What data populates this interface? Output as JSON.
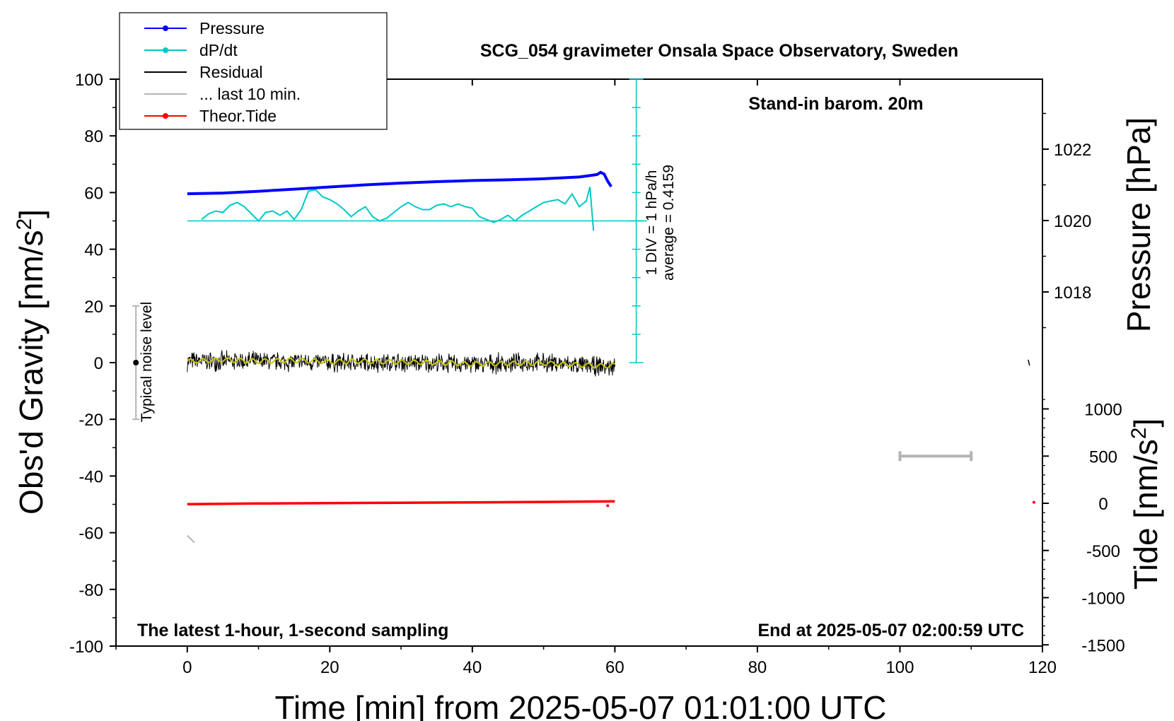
{
  "chart_data": {
    "type": "line",
    "title": "SCG_054 gravimeter Onsala Space Observatory, Sweden",
    "subtitle_left": "The latest 1-hour, 1-second sampling",
    "subtitle_right": "End at 2025-05-07 02:00:59 UTC",
    "barometer_note": "Stand-in barom. 20m",
    "noise_label": "Typical noise level",
    "dpdt_scale_label": "1 DIV = 1 hPa/h",
    "dpdt_average_label": "average = 0.4159",
    "xlabel": "Time [min] from 2025-05-07 01:01:00 UTC",
    "ylabel_left": "Obs'd Gravity [nm/s",
    "ylabel_left_sup": "2",
    "ylabel_left_end": "]",
    "ylabel_right_pressure": "Pressure [hPa]",
    "ylabel_right_tide": "Tide [nm/s",
    "ylabel_right_tide_sup": "2",
    "ylabel_right_tide_end": "]",
    "xlim": [
      -10,
      120
    ],
    "ylim_left": [
      -100,
      100
    ],
    "ylim_pressure": [
      1016.9,
      1024.8
    ],
    "ylim_tide": [
      -1500,
      1500
    ],
    "x_ticks": [
      "0",
      "20",
      "40",
      "60",
      "80",
      "100",
      "120"
    ],
    "y_ticks_left": [
      "100",
      "80",
      "60",
      "40",
      "20",
      "0",
      "-20",
      "-40",
      "-60",
      "-80",
      "-100"
    ],
    "y_ticks_pressure": [
      "1022",
      "1020",
      "1018"
    ],
    "y_ticks_tide": [
      "1000",
      "500",
      "0",
      "-500",
      "-1000",
      "-1500"
    ],
    "legend": [
      {
        "label": "Pressure",
        "color": "#0000ff",
        "marker": true
      },
      {
        "label": "dP/dt",
        "color": "#00c8c8",
        "marker": true
      },
      {
        "label": "Residual",
        "color": "#000000",
        "marker": false
      },
      {
        "label": "... last 10 min.",
        "color": "#b4b4b4",
        "marker": false
      },
      {
        "label": "Theor.Tide",
        "color": "#ff0000",
        "marker": true
      }
    ],
    "series": [
      {
        "name": "Pressure",
        "axis": "pressure_hpa",
        "color": "#0000ff",
        "x": [
          0,
          5,
          10,
          15,
          20,
          25,
          30,
          35,
          40,
          45,
          50,
          55,
          56.5,
          57.5,
          58,
          58.5,
          59,
          59.5
        ],
        "values": [
          1020.75,
          1020.77,
          1020.82,
          1020.88,
          1020.94,
          1021.0,
          1021.05,
          1021.09,
          1021.12,
          1021.14,
          1021.17,
          1021.22,
          1021.26,
          1021.29,
          1021.35,
          1021.3,
          1021.1,
          1020.95
        ]
      },
      {
        "name": "dP/dt",
        "axis": "gravity_scale",
        "color": "#00c8c8",
        "x": [
          2,
          3,
          4,
          5,
          6,
          7,
          8,
          9,
          10,
          11,
          12,
          13,
          14,
          15,
          16,
          17,
          18,
          19,
          20,
          21,
          22,
          23,
          24,
          25,
          26,
          27,
          28,
          29,
          30,
          31,
          32,
          33,
          34,
          35,
          36,
          37,
          38,
          39,
          40,
          41,
          42,
          43,
          44,
          45,
          46,
          47,
          48,
          49,
          50,
          51,
          52,
          53,
          54,
          55,
          56,
          56.5,
          57
        ],
        "values": [
          50.5,
          52.5,
          53.5,
          53,
          55.5,
          56.5,
          55,
          52.5,
          50,
          53,
          53.5,
          52,
          53.5,
          50.5,
          54,
          60.5,
          61,
          58.5,
          57.5,
          56,
          54,
          51.5,
          53.5,
          55,
          51.5,
          50,
          51,
          53,
          55,
          56.5,
          55,
          54,
          54,
          55.5,
          56,
          55,
          56,
          55,
          54.5,
          51.5,
          50.5,
          49.5,
          50.5,
          52,
          50,
          52,
          53.5,
          55,
          56.5,
          57,
          57.5,
          56,
          59.5,
          55,
          57,
          62,
          46.5
        ]
      },
      {
        "name": "Residual",
        "axis": "gravity",
        "color": "#000000",
        "x": [
          0,
          10,
          20,
          30,
          40,
          50,
          55,
          60
        ],
        "values": [
          0.5,
          0.5,
          0,
          0,
          -0.5,
          0,
          -1,
          -1.5
        ],
        "noise_amplitude": 4
      },
      {
        "name": "Smoothed residual",
        "axis": "gravity",
        "color": "#c8c800",
        "x": [
          0,
          5,
          10,
          15,
          20,
          25,
          30,
          35,
          40,
          45,
          50,
          55,
          58,
          60
        ],
        "values": [
          0.5,
          1,
          0.5,
          0.8,
          0.3,
          0.5,
          0.2,
          0,
          -0.5,
          -0.3,
          -0.2,
          -0.8,
          -1.2,
          -1
        ]
      },
      {
        "name": "Theor.Tide",
        "axis": "tide_nms2",
        "color": "#ff0000",
        "x": [
          0,
          10,
          20,
          30,
          40,
          50,
          60
        ],
        "values": [
          -10,
          -2,
          2,
          6,
          10,
          14,
          20
        ]
      },
      {
        "name": "... last 10 min.",
        "color": "#b4b4b4",
        "values": []
      }
    ],
    "dpdt_baseline_gravity": 50,
    "dpdt_scale_bar_gravity_range": [
      0,
      100
    ],
    "dpdt_scale_bar_x": 63,
    "noise_bar": {
      "x": -7.2,
      "range": [
        -20,
        20
      ]
    },
    "scale_bar_grey": {
      "x_range": [
        100,
        110
      ],
      "tide_value": 500
    }
  }
}
